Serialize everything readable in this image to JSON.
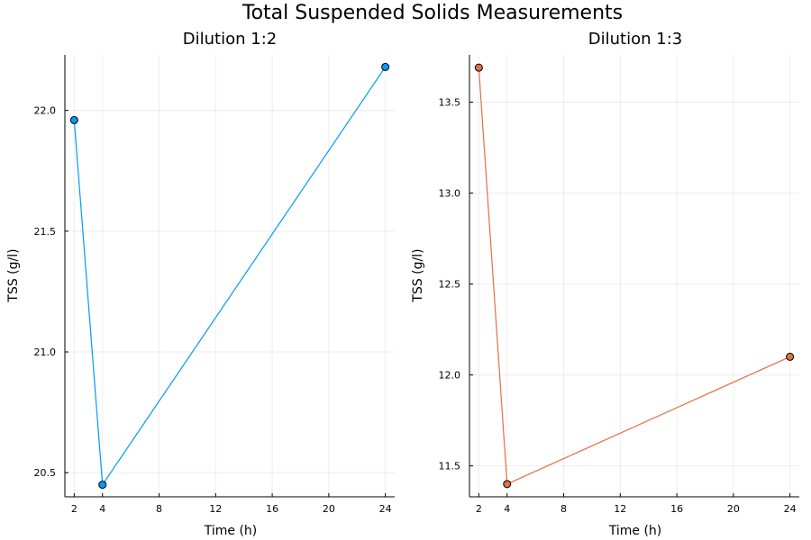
{
  "figure": {
    "title": "Total Suspended Solids Measurements"
  },
  "chart_data": [
    {
      "type": "line",
      "title": "Dilution 1:2",
      "xlabel": "Time (h)",
      "ylabel": "TSS (g/l)",
      "x": [
        2,
        4,
        24
      ],
      "series": [
        {
          "values": [
            21.96,
            20.45,
            22.18
          ],
          "color": "#009af9"
        }
      ],
      "xlim": [
        1.34,
        24.66
      ],
      "ylim": [
        20.4,
        22.23
      ],
      "xticks": [
        2,
        4,
        8,
        12,
        16,
        20,
        24
      ],
      "yticks": [
        20.5,
        21.0,
        21.5,
        22.0
      ],
      "xtick_labels": [
        "2",
        "4",
        "8",
        "12",
        "16",
        "20",
        "24"
      ],
      "ytick_labels": [
        "20.5",
        "21.0",
        "21.5",
        "22.0"
      ],
      "grid": true,
      "markers": true
    },
    {
      "type": "line",
      "title": "Dilution 1:3",
      "xlabel": "Time (h)",
      "ylabel": "TSS (g/l)",
      "x": [
        2,
        4,
        24
      ],
      "series": [
        {
          "values": [
            13.69,
            11.4,
            12.1
          ],
          "color": "#e26f46"
        }
      ],
      "xlim": [
        1.34,
        24.66
      ],
      "ylim": [
        11.33,
        13.76
      ],
      "xticks": [
        2,
        4,
        8,
        12,
        16,
        20,
        24
      ],
      "yticks": [
        11.5,
        12.0,
        12.5,
        13.0,
        13.5
      ],
      "xtick_labels": [
        "2",
        "4",
        "8",
        "12",
        "16",
        "20",
        "24"
      ],
      "ytick_labels": [
        "11.5",
        "12.0",
        "12.5",
        "13.0",
        "13.5"
      ],
      "grid": true,
      "markers": true
    }
  ]
}
